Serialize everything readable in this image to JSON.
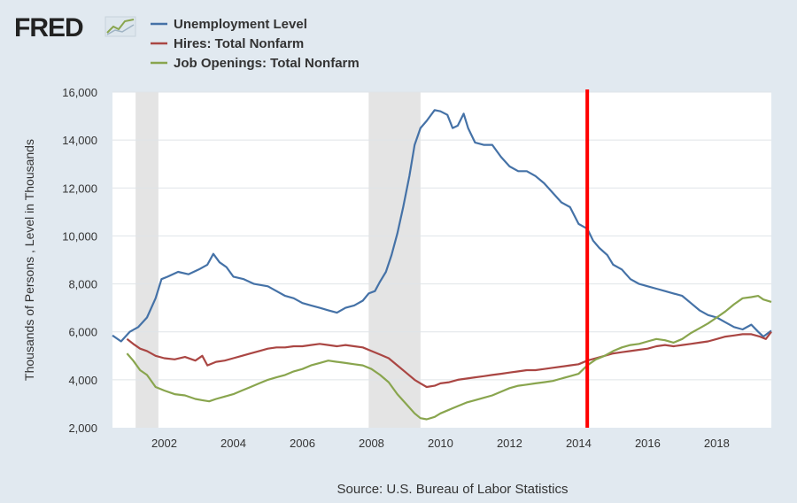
{
  "brand": {
    "logo": "FRED"
  },
  "colors": {
    "background": "#e1e9f0",
    "plot_bg": "#ffffff",
    "grid": "#dfe4e8",
    "recession": "#e4e4e4",
    "marker": "#ff0000"
  },
  "chart_data": {
    "type": "line",
    "ylabel": "Thousands of Persons , Level in Thousands",
    "xlim": [
      2000.5,
      2019.58
    ],
    "ylim": [
      2000,
      16000
    ],
    "y_ticks": [
      2000,
      4000,
      6000,
      8000,
      10000,
      12000,
      14000,
      16000
    ],
    "y_tick_labels": [
      "2,000",
      "4,000",
      "6,000",
      "8,000",
      "10,000",
      "12,000",
      "14,000",
      "16,000"
    ],
    "x_ticks": [
      2002,
      2004,
      2006,
      2008,
      2010,
      2012,
      2014,
      2016,
      2018
    ],
    "x_tick_labels": [
      "2002",
      "2004",
      "2006",
      "2008",
      "2010",
      "2012",
      "2014",
      "2016",
      "2018"
    ],
    "grid": "horizontal",
    "legend_position": "top-left",
    "recessions": [
      [
        2001.17,
        2001.83
      ],
      [
        2007.92,
        2009.42
      ]
    ],
    "vertical_marker": {
      "x": 2014.25,
      "color": "#ff0000"
    },
    "source": "Source: U.S. Bureau of Labor Statistics",
    "series": [
      {
        "name": "Unemployment Level",
        "color": "#4572a7",
        "points": [
          [
            2000.5,
            5850
          ],
          [
            2000.75,
            5600
          ],
          [
            2001.0,
            6000
          ],
          [
            2001.25,
            6200
          ],
          [
            2001.5,
            6600
          ],
          [
            2001.75,
            7400
          ],
          [
            2001.92,
            8200
          ],
          [
            2002.1,
            8300
          ],
          [
            2002.4,
            8500
          ],
          [
            2002.7,
            8400
          ],
          [
            2003.0,
            8600
          ],
          [
            2003.25,
            8800
          ],
          [
            2003.42,
            9250
          ],
          [
            2003.6,
            8900
          ],
          [
            2003.8,
            8700
          ],
          [
            2004.0,
            8300
          ],
          [
            2004.3,
            8200
          ],
          [
            2004.6,
            8000
          ],
          [
            2005.0,
            7900
          ],
          [
            2005.25,
            7700
          ],
          [
            2005.5,
            7500
          ],
          [
            2005.75,
            7400
          ],
          [
            2006.0,
            7200
          ],
          [
            2006.25,
            7100
          ],
          [
            2006.5,
            7000
          ],
          [
            2006.75,
            6900
          ],
          [
            2007.0,
            6800
          ],
          [
            2007.25,
            7000
          ],
          [
            2007.5,
            7100
          ],
          [
            2007.75,
            7300
          ],
          [
            2007.92,
            7600
          ],
          [
            2008.1,
            7700
          ],
          [
            2008.25,
            8100
          ],
          [
            2008.42,
            8500
          ],
          [
            2008.58,
            9200
          ],
          [
            2008.75,
            10100
          ],
          [
            2008.92,
            11200
          ],
          [
            2009.1,
            12500
          ],
          [
            2009.25,
            13800
          ],
          [
            2009.42,
            14500
          ],
          [
            2009.6,
            14800
          ],
          [
            2009.83,
            15250
          ],
          [
            2010.0,
            15200
          ],
          [
            2010.2,
            15050
          ],
          [
            2010.35,
            14500
          ],
          [
            2010.5,
            14600
          ],
          [
            2010.67,
            15100
          ],
          [
            2010.8,
            14500
          ],
          [
            2011.0,
            13900
          ],
          [
            2011.25,
            13800
          ],
          [
            2011.5,
            13800
          ],
          [
            2011.75,
            13300
          ],
          [
            2012.0,
            12900
          ],
          [
            2012.25,
            12700
          ],
          [
            2012.5,
            12700
          ],
          [
            2012.75,
            12500
          ],
          [
            2013.0,
            12200
          ],
          [
            2013.25,
            11800
          ],
          [
            2013.5,
            11400
          ],
          [
            2013.75,
            11200
          ],
          [
            2014.0,
            10500
          ],
          [
            2014.25,
            10300
          ],
          [
            2014.42,
            9800
          ],
          [
            2014.6,
            9500
          ],
          [
            2014.83,
            9200
          ],
          [
            2015.0,
            8800
          ],
          [
            2015.25,
            8600
          ],
          [
            2015.5,
            8200
          ],
          [
            2015.75,
            8000
          ],
          [
            2016.0,
            7900
          ],
          [
            2016.25,
            7800
          ],
          [
            2016.5,
            7700
          ],
          [
            2016.75,
            7600
          ],
          [
            2017.0,
            7500
          ],
          [
            2017.25,
            7200
          ],
          [
            2017.5,
            6900
          ],
          [
            2017.75,
            6700
          ],
          [
            2018.0,
            6600
          ],
          [
            2018.25,
            6400
          ],
          [
            2018.5,
            6200
          ],
          [
            2018.75,
            6100
          ],
          [
            2019.0,
            6300
          ],
          [
            2019.2,
            6000
          ],
          [
            2019.35,
            5800
          ],
          [
            2019.58,
            6050
          ]
        ]
      },
      {
        "name": "Hires: Total Nonfarm",
        "color": "#aa4643",
        "points": [
          [
            2000.92,
            5700
          ],
          [
            2001.1,
            5500
          ],
          [
            2001.3,
            5300
          ],
          [
            2001.5,
            5200
          ],
          [
            2001.75,
            5000
          ],
          [
            2002.0,
            4900
          ],
          [
            2002.3,
            4850
          ],
          [
            2002.6,
            4950
          ],
          [
            2002.9,
            4800
          ],
          [
            2003.1,
            5000
          ],
          [
            2003.25,
            4600
          ],
          [
            2003.5,
            4750
          ],
          [
            2003.75,
            4800
          ],
          [
            2004.0,
            4900
          ],
          [
            2004.25,
            5000
          ],
          [
            2004.5,
            5100
          ],
          [
            2004.75,
            5200
          ],
          [
            2005.0,
            5300
          ],
          [
            2005.25,
            5350
          ],
          [
            2005.5,
            5350
          ],
          [
            2005.75,
            5400
          ],
          [
            2006.0,
            5400
          ],
          [
            2006.25,
            5450
          ],
          [
            2006.5,
            5500
          ],
          [
            2006.75,
            5450
          ],
          [
            2007.0,
            5400
          ],
          [
            2007.25,
            5450
          ],
          [
            2007.5,
            5400
          ],
          [
            2007.75,
            5350
          ],
          [
            2008.0,
            5200
          ],
          [
            2008.25,
            5050
          ],
          [
            2008.5,
            4900
          ],
          [
            2008.75,
            4600
          ],
          [
            2009.0,
            4300
          ],
          [
            2009.25,
            4000
          ],
          [
            2009.42,
            3850
          ],
          [
            2009.6,
            3700
          ],
          [
            2009.83,
            3750
          ],
          [
            2010.0,
            3850
          ],
          [
            2010.25,
            3900
          ],
          [
            2010.5,
            4000
          ],
          [
            2010.75,
            4050
          ],
          [
            2011.0,
            4100
          ],
          [
            2011.25,
            4150
          ],
          [
            2011.5,
            4200
          ],
          [
            2011.75,
            4250
          ],
          [
            2012.0,
            4300
          ],
          [
            2012.25,
            4350
          ],
          [
            2012.5,
            4400
          ],
          [
            2012.75,
            4400
          ],
          [
            2013.0,
            4450
          ],
          [
            2013.25,
            4500
          ],
          [
            2013.5,
            4550
          ],
          [
            2013.75,
            4600
          ],
          [
            2014.0,
            4650
          ],
          [
            2014.25,
            4800
          ],
          [
            2014.5,
            4900
          ],
          [
            2014.75,
            5000
          ],
          [
            2015.0,
            5100
          ],
          [
            2015.25,
            5150
          ],
          [
            2015.5,
            5200
          ],
          [
            2015.75,
            5250
          ],
          [
            2016.0,
            5300
          ],
          [
            2016.25,
            5400
          ],
          [
            2016.5,
            5450
          ],
          [
            2016.75,
            5400
          ],
          [
            2017.0,
            5450
          ],
          [
            2017.25,
            5500
          ],
          [
            2017.5,
            5550
          ],
          [
            2017.75,
            5600
          ],
          [
            2018.0,
            5700
          ],
          [
            2018.25,
            5800
          ],
          [
            2018.5,
            5850
          ],
          [
            2018.75,
            5900
          ],
          [
            2019.0,
            5900
          ],
          [
            2019.25,
            5800
          ],
          [
            2019.42,
            5700
          ],
          [
            2019.58,
            6000
          ]
        ]
      },
      {
        "name": "Job Openings: Total Nonfarm",
        "color": "#89a54e",
        "points": [
          [
            2000.92,
            5100
          ],
          [
            2001.1,
            4800
          ],
          [
            2001.3,
            4400
          ],
          [
            2001.5,
            4200
          ],
          [
            2001.75,
            3700
          ],
          [
            2002.0,
            3550
          ],
          [
            2002.3,
            3400
          ],
          [
            2002.6,
            3350
          ],
          [
            2002.9,
            3200
          ],
          [
            2003.1,
            3150
          ],
          [
            2003.3,
            3100
          ],
          [
            2003.5,
            3200
          ],
          [
            2003.75,
            3300
          ],
          [
            2004.0,
            3400
          ],
          [
            2004.25,
            3550
          ],
          [
            2004.5,
            3700
          ],
          [
            2004.75,
            3850
          ],
          [
            2005.0,
            4000
          ],
          [
            2005.25,
            4100
          ],
          [
            2005.5,
            4200
          ],
          [
            2005.75,
            4350
          ],
          [
            2006.0,
            4450
          ],
          [
            2006.25,
            4600
          ],
          [
            2006.5,
            4700
          ],
          [
            2006.75,
            4800
          ],
          [
            2007.0,
            4750
          ],
          [
            2007.25,
            4700
          ],
          [
            2007.5,
            4650
          ],
          [
            2007.75,
            4600
          ],
          [
            2008.0,
            4450
          ],
          [
            2008.25,
            4200
          ],
          [
            2008.5,
            3900
          ],
          [
            2008.75,
            3400
          ],
          [
            2009.0,
            3000
          ],
          [
            2009.25,
            2600
          ],
          [
            2009.42,
            2400
          ],
          [
            2009.6,
            2350
          ],
          [
            2009.83,
            2450
          ],
          [
            2010.0,
            2600
          ],
          [
            2010.25,
            2750
          ],
          [
            2010.5,
            2900
          ],
          [
            2010.75,
            3050
          ],
          [
            2011.0,
            3150
          ],
          [
            2011.25,
            3250
          ],
          [
            2011.5,
            3350
          ],
          [
            2011.75,
            3500
          ],
          [
            2012.0,
            3650
          ],
          [
            2012.25,
            3750
          ],
          [
            2012.5,
            3800
          ],
          [
            2012.75,
            3850
          ],
          [
            2013.0,
            3900
          ],
          [
            2013.25,
            3950
          ],
          [
            2013.5,
            4050
          ],
          [
            2013.75,
            4150
          ],
          [
            2014.0,
            4250
          ],
          [
            2014.25,
            4600
          ],
          [
            2014.5,
            4850
          ],
          [
            2014.75,
            5000
          ],
          [
            2015.0,
            5200
          ],
          [
            2015.25,
            5350
          ],
          [
            2015.5,
            5450
          ],
          [
            2015.75,
            5500
          ],
          [
            2016.0,
            5600
          ],
          [
            2016.25,
            5700
          ],
          [
            2016.5,
            5650
          ],
          [
            2016.75,
            5550
          ],
          [
            2017.0,
            5700
          ],
          [
            2017.25,
            5950
          ],
          [
            2017.5,
            6150
          ],
          [
            2017.75,
            6350
          ],
          [
            2018.0,
            6600
          ],
          [
            2018.25,
            6850
          ],
          [
            2018.5,
            7150
          ],
          [
            2018.75,
            7400
          ],
          [
            2019.0,
            7450
          ],
          [
            2019.2,
            7500
          ],
          [
            2019.35,
            7350
          ],
          [
            2019.58,
            7250
          ]
        ]
      }
    ]
  }
}
